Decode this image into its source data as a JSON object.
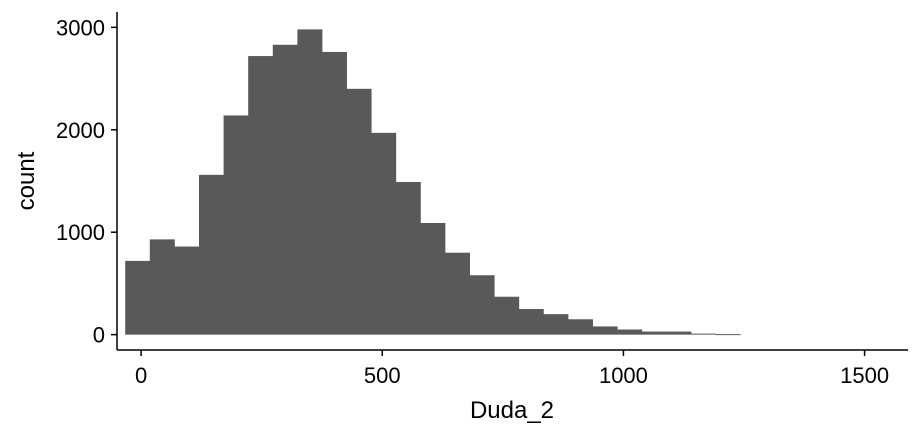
{
  "chart_data": {
    "type": "bar",
    "xlabel": "Duda_2",
    "ylabel": "count",
    "xlim": [
      -50,
      1590
    ],
    "ylim": [
      -150,
      3150
    ],
    "grid": false,
    "x_ticks": [
      0,
      500,
      1000,
      1500
    ],
    "x_tick_labels": [
      "0",
      "500",
      "1000",
      "1500"
    ],
    "y_ticks": [
      0,
      1000,
      2000,
      3000
    ],
    "y_tick_labels": [
      "0",
      "1000",
      "2000",
      "3000"
    ],
    "bin_width": 51,
    "bin_starts": [
      -33,
      18,
      69,
      120,
      171,
      222,
      273,
      324,
      375,
      426,
      477,
      528,
      579,
      630,
      681,
      732,
      783,
      834,
      885,
      936,
      987,
      1038,
      1089,
      1140,
      1191
    ],
    "values": [
      720,
      930,
      860,
      1560,
      2140,
      2720,
      2830,
      2980,
      2760,
      2400,
      1970,
      1490,
      1090,
      800,
      580,
      370,
      250,
      200,
      150,
      80,
      50,
      30,
      30,
      10,
      5
    ],
    "bar_color": "#595959"
  }
}
